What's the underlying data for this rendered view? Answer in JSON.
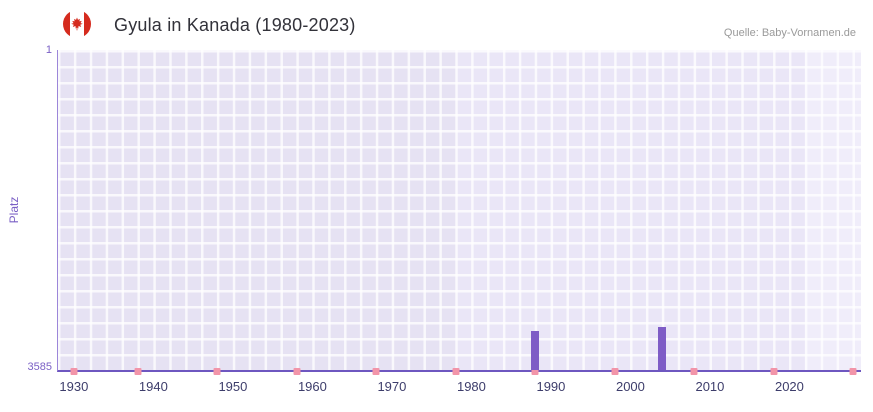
{
  "header": {
    "title": "Gyula in Kanada (1980-2023)",
    "source": "Quelle: Baby-Vornamen.de",
    "flag_icon": "canada-flag-icon"
  },
  "chart_data": {
    "type": "bar",
    "title": "Gyula in Kanada (1980-2023)",
    "xlabel": "",
    "ylabel": "Platz",
    "y_axis": {
      "min": 1,
      "max": 3585,
      "inverted": true,
      "top_label": "1",
      "bottom_label": "3585"
    },
    "x_axis": {
      "min": 1928,
      "max": 2029,
      "ticks": [
        1930,
        1940,
        1950,
        1960,
        1970,
        1980,
        1990,
        2000,
        2010,
        2020
      ]
    },
    "series": [
      {
        "name": "Platz",
        "color": "#7e5cc6",
        "points": [
          {
            "year": 1988,
            "rank": 3150
          },
          {
            "year": 2004,
            "rank": 3105
          }
        ]
      }
    ],
    "markers": {
      "color": "#f295a9",
      "years": [
        1930,
        1938,
        1948,
        1958,
        1968,
        1978,
        1988,
        1998,
        2008,
        2018,
        2028
      ]
    },
    "plot_bands": [
      {
        "from": 1928,
        "to": 1978,
        "color": "#e6e2f3"
      },
      {
        "from": 1978,
        "to": 2022,
        "color": "#eae6f7"
      },
      {
        "from": 2022,
        "to": 2029,
        "color": "#f0edfa"
      }
    ],
    "grid": true,
    "legend": false
  },
  "colors": {
    "axis_line": "#6e57c0",
    "y_text": "#7a5fc5",
    "x_text": "#3d3d6b",
    "title_text": "#32323a",
    "source_text": "#9a9a9a",
    "flag_red": "#d52b1e",
    "grid_line": "#ffffff"
  }
}
